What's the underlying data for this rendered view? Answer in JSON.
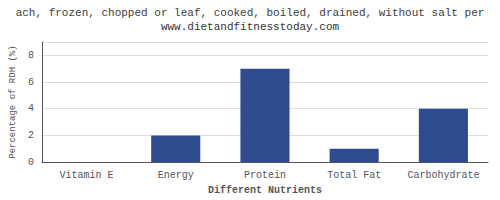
{
  "chart_data": {
    "type": "bar",
    "title": "ach, frozen, chopped or leaf, cooked, boiled, drained, without salt per",
    "subtitle": "www.dietandfitnesstoday.com",
    "categories": [
      "Vitamin E",
      "Energy",
      "Protein",
      "Total Fat",
      "Carbohydrate"
    ],
    "values": [
      0,
      2,
      7,
      1,
      4
    ],
    "color": "#2e4b8f",
    "xlabel": "Different Nutrients",
    "ylabel": "Percentage of RDH (%)",
    "ylim": [
      0,
      9
    ],
    "yticks": [
      0,
      2,
      4,
      6,
      8
    ],
    "grid": true
  }
}
